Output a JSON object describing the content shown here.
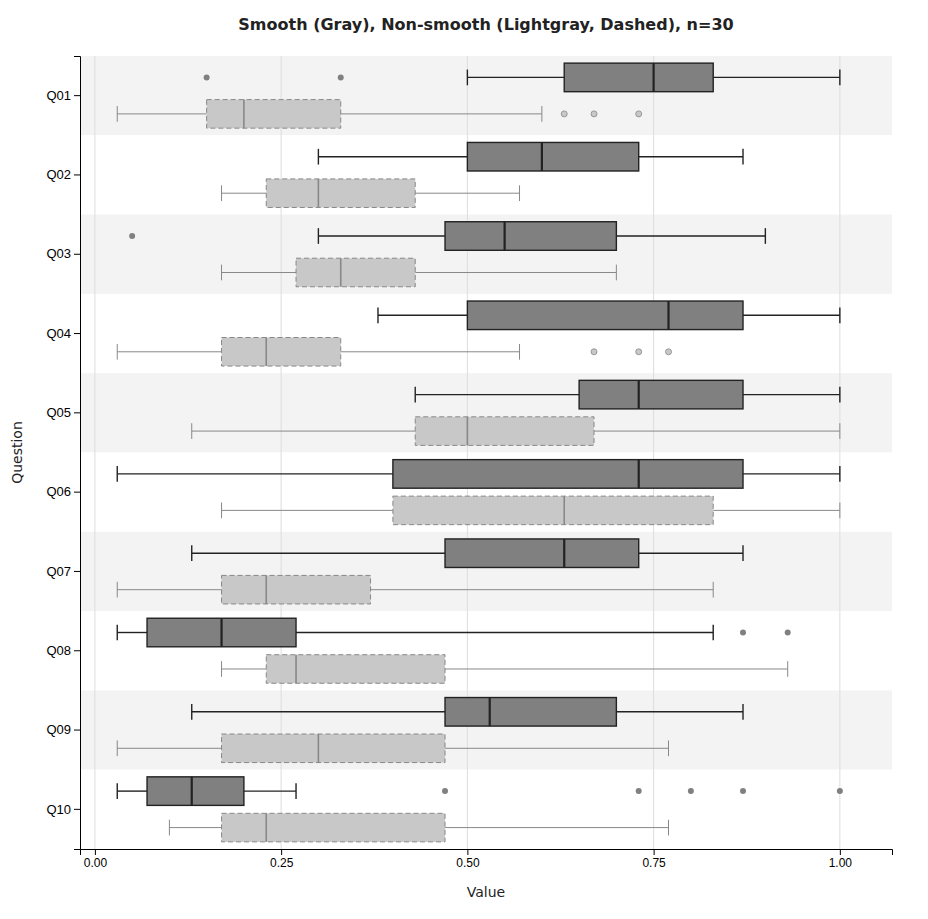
{
  "chart_data": {
    "type": "box",
    "title": "Smooth (Gray), Non-smooth (Lightgray, Dashed), n=30",
    "xlabel": "Value",
    "ylabel": "Question",
    "categories": [
      "Q01",
      "Q02",
      "Q03",
      "Q04",
      "Q05",
      "Q06",
      "Q07",
      "Q08",
      "Q09",
      "Q10"
    ],
    "series": [
      {
        "color": "#808080",
        "line_style": "solid",
        "values": [
          {
            "whislo": 0.5,
            "q1": 0.63,
            "med": 0.75,
            "q3": 0.83,
            "whishi": 1.0,
            "fliers": [
              0.15,
              0.33
            ]
          },
          {
            "whislo": 0.3,
            "q1": 0.5,
            "med": 0.6,
            "q3": 0.73,
            "whishi": 0.87,
            "fliers": []
          },
          {
            "whislo": 0.3,
            "q1": 0.47,
            "med": 0.55,
            "q3": 0.7,
            "whishi": 0.9,
            "fliers": [
              0.05
            ]
          },
          {
            "whislo": 0.38,
            "q1": 0.5,
            "med": 0.77,
            "q3": 0.87,
            "whishi": 1.0,
            "fliers": []
          },
          {
            "whislo": 0.43,
            "q1": 0.65,
            "med": 0.73,
            "q3": 0.87,
            "whishi": 1.0,
            "fliers": []
          },
          {
            "whislo": 0.03,
            "q1": 0.4,
            "med": 0.73,
            "q3": 0.87,
            "whishi": 1.0,
            "fliers": []
          },
          {
            "whislo": 0.13,
            "q1": 0.47,
            "med": 0.63,
            "q3": 0.73,
            "whishi": 0.87,
            "fliers": []
          },
          {
            "whislo": 0.03,
            "q1": 0.07,
            "med": 0.17,
            "q3": 0.27,
            "whishi": 0.83,
            "fliers": [
              0.87,
              0.93
            ]
          },
          {
            "whislo": 0.13,
            "q1": 0.47,
            "med": 0.53,
            "q3": 0.7,
            "whishi": 0.87,
            "fliers": []
          },
          {
            "whislo": 0.03,
            "q1": 0.07,
            "med": 0.13,
            "q3": 0.2,
            "whishi": 0.27,
            "fliers": [
              0.47,
              0.73,
              0.8,
              0.87,
              1.0
            ]
          }
        ]
      },
      {
        "color": "#c8c8c8",
        "line_style": "dashed",
        "values": [
          {
            "whislo": 0.03,
            "q1": 0.15,
            "med": 0.2,
            "q3": 0.33,
            "whishi": 0.6,
            "fliers": [
              0.63,
              0.67,
              0.73
            ]
          },
          {
            "whislo": 0.17,
            "q1": 0.23,
            "med": 0.3,
            "q3": 0.43,
            "whishi": 0.57,
            "fliers": []
          },
          {
            "whislo": 0.17,
            "q1": 0.27,
            "med": 0.33,
            "q3": 0.43,
            "whishi": 0.7,
            "fliers": []
          },
          {
            "whislo": 0.03,
            "q1": 0.17,
            "med": 0.23,
            "q3": 0.33,
            "whishi": 0.57,
            "fliers": [
              0.67,
              0.73,
              0.77
            ]
          },
          {
            "whislo": 0.13,
            "q1": 0.43,
            "med": 0.5,
            "q3": 0.67,
            "whishi": 1.0,
            "fliers": []
          },
          {
            "whislo": 0.17,
            "q1": 0.4,
            "med": 0.63,
            "q3": 0.83,
            "whishi": 1.0,
            "fliers": []
          },
          {
            "whislo": 0.03,
            "q1": 0.17,
            "med": 0.23,
            "q3": 0.37,
            "whishi": 0.83,
            "fliers": []
          },
          {
            "whislo": 0.17,
            "q1": 0.23,
            "med": 0.27,
            "q3": 0.47,
            "whishi": 0.93,
            "fliers": []
          },
          {
            "whislo": 0.03,
            "q1": 0.17,
            "med": 0.3,
            "q3": 0.47,
            "whishi": 0.77,
            "fliers": []
          },
          {
            "whislo": 0.1,
            "q1": 0.17,
            "med": 0.23,
            "q3": 0.47,
            "whishi": 0.77,
            "fliers": []
          }
        ]
      }
    ],
    "xlim": [
      -0.02,
      1.07
    ],
    "xticks": [
      {
        "value": 0,
        "label": "0.00"
      },
      0.25,
      {
        "value": 0.5,
        "label": "0.50"
      },
      0.75,
      {
        "value": 1,
        "label": "1.00"
      }
    ],
    "grid": true
  }
}
